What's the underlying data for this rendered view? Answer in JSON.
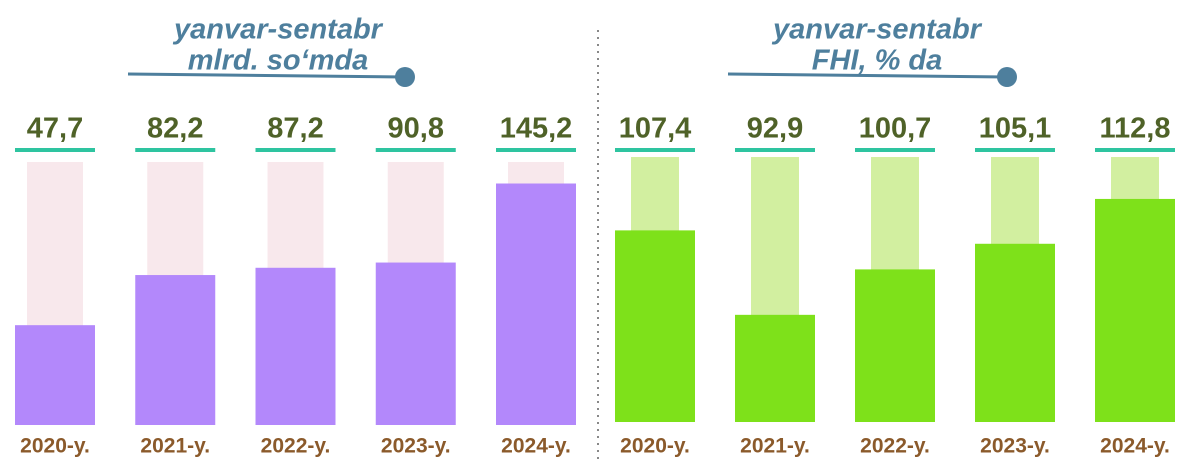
{
  "chart_data": [
    {
      "type": "bar",
      "title": [
        "yanvar-sentabr",
        "mlrd. so‘mda"
      ],
      "categories": [
        "2020-y.",
        "2021-y.",
        "2022-y.",
        "2023-y.",
        "2024-y."
      ],
      "values": [
        47.7,
        82.2,
        87.2,
        90.8,
        145.2
      ],
      "value_labels": [
        "47,7",
        "82,2",
        "87,2",
        "90,8",
        "145,2"
      ],
      "color": "#b388fb",
      "background_color": "#f8e8ec",
      "ylim": [
        -21,
        160
      ]
    },
    {
      "type": "bar",
      "title": [
        "yanvar-sentabr",
        "FHI, % da"
      ],
      "categories": [
        "2020-y.",
        "2021-y.",
        "2022-y.",
        "2023-y.",
        "2024-y."
      ],
      "values": [
        107.4,
        92.9,
        100.7,
        105.1,
        112.8
      ],
      "value_labels": [
        "107,4",
        "92,9",
        "100,7",
        "105,1",
        "112,8"
      ],
      "color": "#7ee11a",
      "background_color": "#d2efa0",
      "ylim": [
        74.5,
        120
      ]
    }
  ]
}
